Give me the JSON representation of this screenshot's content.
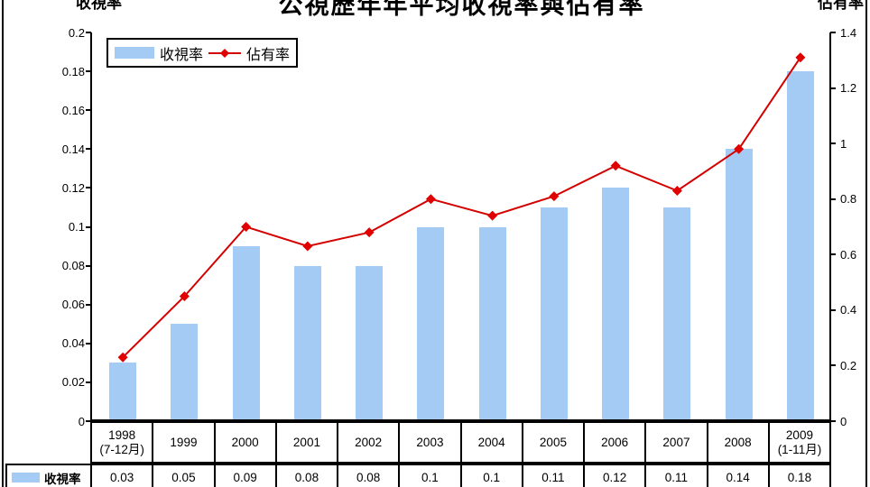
{
  "title": "公視歷年年平均收視率與佔有率",
  "left_axis_top_label": "收視率",
  "right_axis_top_label": "佔有率",
  "legend": {
    "bar_label": "收視率",
    "line_label": "佔有率"
  },
  "colors": {
    "bar": "#A4CBF4",
    "line": "#D40000",
    "marker": "#E00000",
    "border": "#000000",
    "background": "#FFFFFF"
  },
  "chart_data": {
    "type": "bar+line",
    "title": "公視歷年年平均收視率與佔有率",
    "grid": false,
    "legend_position": "top-left",
    "categories": [
      {
        "year": "1998",
        "note": "(7-12月)"
      },
      {
        "year": "1999",
        "note": ""
      },
      {
        "year": "2000",
        "note": ""
      },
      {
        "year": "2001",
        "note": ""
      },
      {
        "year": "2002",
        "note": ""
      },
      {
        "year": "2003",
        "note": ""
      },
      {
        "year": "2004",
        "note": ""
      },
      {
        "year": "2005",
        "note": ""
      },
      {
        "year": "2006",
        "note": ""
      },
      {
        "year": "2007",
        "note": ""
      },
      {
        "year": "2008",
        "note": ""
      },
      {
        "year": "2009",
        "note": "(1-11月)"
      }
    ],
    "series": [
      {
        "name": "收視率",
        "type": "bar",
        "axis": "left",
        "color": "#A4CBF4",
        "values": [
          0.03,
          0.05,
          0.09,
          0.08,
          0.08,
          0.1,
          0.1,
          0.11,
          0.12,
          0.11,
          0.14,
          0.18
        ]
      },
      {
        "name": "佔有率",
        "type": "line",
        "axis": "right",
        "color": "#D40000",
        "marker": "diamond",
        "values": [
          0.23,
          0.45,
          0.7,
          0.63,
          0.68,
          0.8,
          0.74,
          0.81,
          0.92,
          0.83,
          0.98,
          1.31
        ]
      }
    ],
    "left_axis": {
      "title": "收視率",
      "min": 0,
      "max": 0.2,
      "ticks": [
        "0.2",
        "0.18",
        "0.16",
        "0.14",
        "0.12",
        "0.1",
        "0.08",
        "0.06",
        "0.04",
        "0.02",
        "0"
      ]
    },
    "right_axis": {
      "title": "佔有率",
      "min": 0,
      "max": 1.4,
      "ticks": [
        "1.4",
        "1.2",
        "1",
        "0.8",
        "0.6",
        "0.4",
        "0.2",
        "0"
      ]
    }
  },
  "table": {
    "row_label": "收視率",
    "values": [
      "0.03",
      "0.05",
      "0.09",
      "0.08",
      "0.08",
      "0.1",
      "0.1",
      "0.11",
      "0.12",
      "0.11",
      "0.14",
      "0.18"
    ]
  }
}
